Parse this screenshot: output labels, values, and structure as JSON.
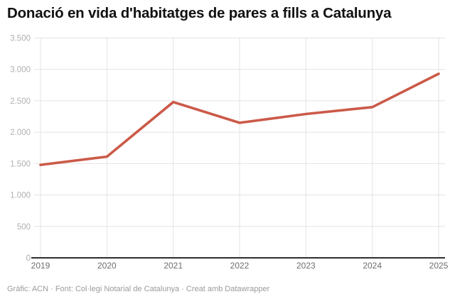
{
  "footer": {
    "text": "Gràfic: ACN · Font: Col·legi Notarial de Catalunya · Creat amb Datawrapper"
  },
  "chart_data": {
    "type": "line",
    "title": "Donació en vida d'habitatges de pares a fills a Catalunya",
    "categories": [
      "2019",
      "2020",
      "2021",
      "2022",
      "2023",
      "2024",
      "2025"
    ],
    "values": [
      1480,
      1610,
      2480,
      2150,
      2290,
      2400,
      2930
    ],
    "xlabel": "",
    "ylabel": "",
    "ylim": [
      0,
      3500
    ],
    "grid": true,
    "legend": "none",
    "y_ticks": [
      {
        "value": 0,
        "label": "0"
      },
      {
        "value": 500,
        "label": "500"
      },
      {
        "value": 1000,
        "label": "1.000"
      },
      {
        "value": 1500,
        "label": "1.500"
      },
      {
        "value": 2000,
        "label": "2.000"
      },
      {
        "value": 2500,
        "label": "2.500"
      },
      {
        "value": 3000,
        "label": "3.000"
      },
      {
        "value": 3500,
        "label": "3.500"
      }
    ]
  },
  "colors": {
    "title": "#111111",
    "line": "#cb5a49",
    "grid": "#e3e3e3",
    "axis_line": "#2e2e2e",
    "y_tick_label": "#b0b0b0",
    "x_tick_label": "#6e6e6e",
    "footer": "#9b9b9b"
  }
}
